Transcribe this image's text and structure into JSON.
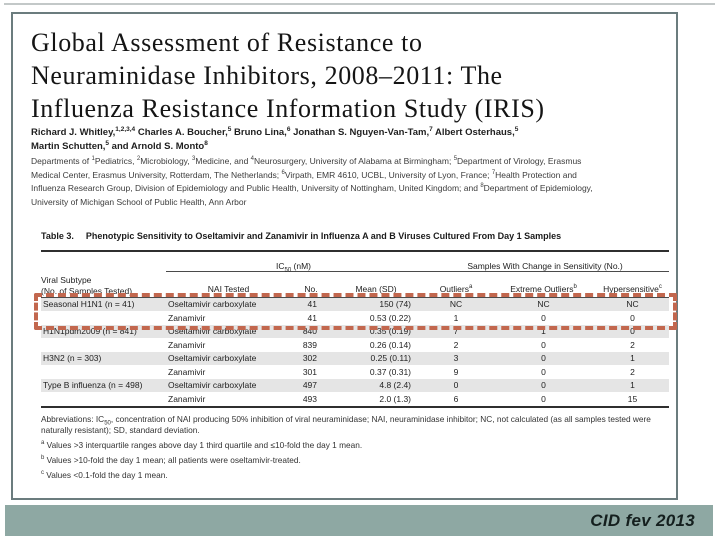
{
  "footer": {
    "label": "CID fev 2013"
  },
  "paper": {
    "title_lines": [
      "Global Assessment of Resistance to",
      "Neuraminidase Inhibitors, 2008–2011: The",
      "Influenza Resistance Information Study (IRIS)"
    ],
    "author_lines": [
      [
        {
          "t": "Richard J. Whitley,"
        },
        {
          "t": "1,2,3,4",
          "s": "sup"
        },
        {
          "t": " Charles A. Boucher,"
        },
        {
          "t": "5",
          "s": "sup"
        },
        {
          "t": " Bruno Lina,"
        },
        {
          "t": "6",
          "s": "sup"
        },
        {
          "t": " Jonathan S. Nguyen-Van-Tam,"
        },
        {
          "t": "7",
          "s": "sup"
        },
        {
          "t": " Albert Osterhaus,"
        },
        {
          "t": "5",
          "s": "sup"
        }
      ],
      [
        {
          "t": "Martin Schutten,"
        },
        {
          "t": "5",
          "s": "sup"
        },
        {
          "t": " and Arnold S. Monto"
        },
        {
          "t": "8",
          "s": "sup"
        }
      ]
    ],
    "affiliation_lines": [
      [
        {
          "t": "Departments of "
        },
        {
          "t": "1",
          "s": "sup"
        },
        {
          "t": "Pediatrics, "
        },
        {
          "t": "2",
          "s": "sup"
        },
        {
          "t": "Microbiology, "
        },
        {
          "t": "3",
          "s": "sup"
        },
        {
          "t": "Medicine, and "
        },
        {
          "t": "4",
          "s": "sup"
        },
        {
          "t": "Neurosurgery, University of Alabama at Birmingham; "
        },
        {
          "t": "5",
          "s": "sup"
        },
        {
          "t": "Department of Virology, Erasmus"
        }
      ],
      [
        {
          "t": "Medical Center, Erasmus University, Rotterdam, The Netherlands; "
        },
        {
          "t": "6",
          "s": "sup"
        },
        {
          "t": "Virpath, EMR 4610, UCBL, University of Lyon, France; "
        },
        {
          "t": "7",
          "s": "sup"
        },
        {
          "t": "Health Protection and"
        }
      ],
      [
        {
          "t": "Influenza Research Group, Division of Epidemiology and Public Health, University of Nottingham, United Kingdom; and "
        },
        {
          "t": "8",
          "s": "sup"
        },
        {
          "t": "Department of Epidemiology,"
        }
      ],
      [
        {
          "t": "University of Michigan School of Public Health, Ann Arbor"
        }
      ]
    ]
  },
  "table": {
    "caption_label": "Table 3.",
    "caption_text": "Phenotypic Sensitivity to Oseltamivir and Zanamivir in Influenza A and B Viruses Cultured From Day 1 Samples",
    "headers": {
      "viral_subtype_line1": "Viral Subtype",
      "viral_subtype_line2": "(No. of Samples Tested)",
      "ic50_group": [
        {
          "t": "IC"
        },
        {
          "t": "50",
          "s": "sub"
        },
        {
          "t": " (nM)"
        }
      ],
      "sensitivity_group": "Samples With Change in Sensitivity (No.)",
      "nai_tested": "NAI Tested",
      "no": "No.",
      "mean_sd": "Mean (SD)",
      "outliers": [
        {
          "t": "Outliers"
        },
        {
          "t": "a",
          "s": "sup"
        }
      ],
      "extreme_outliers": [
        {
          "t": "Extreme Outliers"
        },
        {
          "t": "b",
          "s": "sup"
        }
      ],
      "hypersensitive": [
        {
          "t": "Hypersensitive"
        },
        {
          "t": "c",
          "s": "sup"
        }
      ]
    },
    "rows": [
      {
        "subtype": "Seasonal H1N1 (n = 41)",
        "nai": "Oseltamivir carboxylate",
        "no": "41",
        "mean": "150 (74)",
        "outliers": "NC",
        "extreme": "NC",
        "hyper": "NC"
      },
      {
        "subtype": "",
        "nai": "Zanamivir",
        "no": "41",
        "mean": "0.53 (0.22)",
        "outliers": "1",
        "extreme": "0",
        "hyper": "0"
      },
      {
        "subtype": "H1N1pdm2009 (n = 841)",
        "nai": "Oseltamivir carboxylate",
        "no": "840",
        "mean": "0.35 (0.19)",
        "outliers": "7",
        "extreme": "1",
        "hyper": "0"
      },
      {
        "subtype": "",
        "nai": "Zanamivir",
        "no": "839",
        "mean": "0.26 (0.14)",
        "outliers": "2",
        "extreme": "0",
        "hyper": "2"
      },
      {
        "subtype": "H3N2 (n = 303)",
        "nai": "Oseltamivir carboxylate",
        "no": "302",
        "mean": "0.25 (0.11)",
        "outliers": "3",
        "extreme": "0",
        "hyper": "1"
      },
      {
        "subtype": "",
        "nai": "Zanamivir",
        "no": "301",
        "mean": "0.37 (0.31)",
        "outliers": "9",
        "extreme": "0",
        "hyper": "2"
      },
      {
        "subtype": "Type B influenza (n = 498)",
        "nai": "Oseltamivir carboxylate",
        "no": "497",
        "mean": "4.8 (2.4)",
        "outliers": "0",
        "extreme": "0",
        "hyper": "1"
      },
      {
        "subtype": "",
        "nai": "Zanamivir",
        "no": "493",
        "mean": "2.0 (1.3)",
        "outliers": "6",
        "extreme": "0",
        "hyper": "15"
      }
    ],
    "footnotes": {
      "abbreviations": [
        {
          "t": "Abbreviations: IC"
        },
        {
          "t": "50",
          "s": "sub"
        },
        {
          "t": ", concentration of NAI producing 50% inhibition of viral neuraminidase; NAI, neuraminidase inhibitor; NC, not calculated (as all samples tested were naturally resistant); SD, standard deviation."
        }
      ],
      "a": [
        {
          "t": "a",
          "s": "sup"
        },
        {
          "t": " Values >3 interquartile ranges above day 1 third quartile and ≤10-fold the day 1 mean."
        }
      ],
      "b": [
        {
          "t": "b",
          "s": "sup"
        },
        {
          "t": " Values >10-fold the day 1 mean; all patients were oseltamivir-treated."
        }
      ],
      "c": [
        {
          "t": "c",
          "s": "sup"
        },
        {
          "t": " Values <0.1-fold the day 1 mean."
        }
      ]
    }
  },
  "colors": {
    "footer_bar": "#8ea8a3",
    "highlight": "#c2674e",
    "row_shade": "#e5e5e5",
    "frame_border": "#6b7c7e"
  }
}
